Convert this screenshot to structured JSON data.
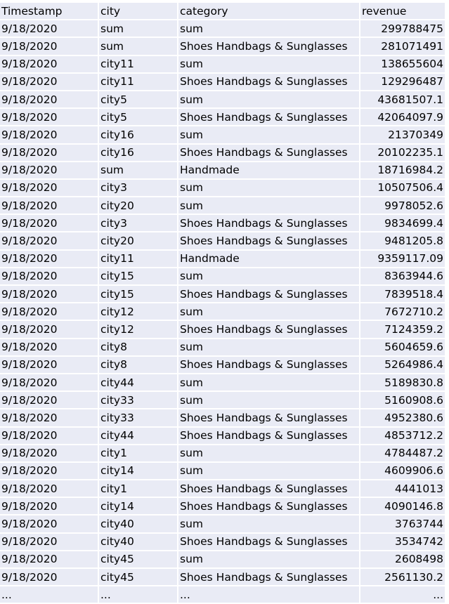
{
  "table": {
    "headers": [
      "Timestamp",
      "city",
      "category",
      "revenue"
    ],
    "rows": [
      [
        "9/18/2020",
        "sum",
        "sum",
        "299788475"
      ],
      [
        "9/18/2020",
        "sum",
        "Shoes Handbags & Sunglasses",
        "281071491"
      ],
      [
        "9/18/2020",
        "city11",
        "sum",
        "138655604"
      ],
      [
        "9/18/2020",
        "city11",
        "Shoes Handbags & Sunglasses",
        "129296487"
      ],
      [
        "9/18/2020",
        "city5",
        "sum",
        "43681507.1"
      ],
      [
        "9/18/2020",
        "city5",
        "Shoes Handbags & Sunglasses",
        "42064097.9"
      ],
      [
        "9/18/2020",
        "city16",
        "sum",
        "21370349"
      ],
      [
        "9/18/2020",
        "city16",
        "Shoes Handbags & Sunglasses",
        "20102235.1"
      ],
      [
        "9/18/2020",
        "sum",
        "Handmade",
        "18716984.2"
      ],
      [
        "9/18/2020",
        "city3",
        "sum",
        "10507506.4"
      ],
      [
        "9/18/2020",
        "city20",
        "sum",
        "9978052.6"
      ],
      [
        "9/18/2020",
        "city3",
        "Shoes Handbags & Sunglasses",
        "9834699.4"
      ],
      [
        "9/18/2020",
        "city20",
        "Shoes Handbags & Sunglasses",
        "9481205.8"
      ],
      [
        "9/18/2020",
        "city11",
        "Handmade",
        "9359117.09"
      ],
      [
        "9/18/2020",
        "city15",
        "sum",
        "8363944.6"
      ],
      [
        "9/18/2020",
        "city15",
        "Shoes Handbags & Sunglasses",
        "7839518.4"
      ],
      [
        "9/18/2020",
        "city12",
        "sum",
        "7672710.2"
      ],
      [
        "9/18/2020",
        "city12",
        "Shoes Handbags & Sunglasses",
        "7124359.2"
      ],
      [
        "9/18/2020",
        "city8",
        "sum",
        "5604659.6"
      ],
      [
        "9/18/2020",
        "city8",
        "Shoes Handbags & Sunglasses",
        "5264986.4"
      ],
      [
        "9/18/2020",
        "city44",
        "sum",
        "5189830.8"
      ],
      [
        "9/18/2020",
        "city33",
        "sum",
        "5160908.6"
      ],
      [
        "9/18/2020",
        "city33",
        "Shoes Handbags & Sunglasses",
        "4952380.6"
      ],
      [
        "9/18/2020",
        "city44",
        "Shoes Handbags & Sunglasses",
        "4853712.2"
      ],
      [
        "9/18/2020",
        "city1",
        "sum",
        "4784487.2"
      ],
      [
        "9/18/2020",
        "city14",
        "sum",
        "4609906.6"
      ],
      [
        "9/18/2020",
        "city1",
        "Shoes Handbags & Sunglasses",
        "4441013"
      ],
      [
        "9/18/2020",
        "city14",
        "Shoes Handbags & Sunglasses",
        "4090146.8"
      ],
      [
        "9/18/2020",
        "city40",
        "sum",
        "3763744"
      ],
      [
        "9/18/2020",
        "city40",
        "Shoes Handbags & Sunglasses",
        "3534742"
      ],
      [
        "9/18/2020",
        "city45",
        "sum",
        "2608498"
      ],
      [
        "9/18/2020",
        "city45",
        "Shoes Handbags & Sunglasses",
        "2561130.2"
      ],
      [
        "...",
        "...",
        "...",
        "..."
      ]
    ]
  },
  "colors": {
    "cell_background": "#e9ebf5",
    "grid_lines": "#ffffff",
    "text": "#000000"
  }
}
